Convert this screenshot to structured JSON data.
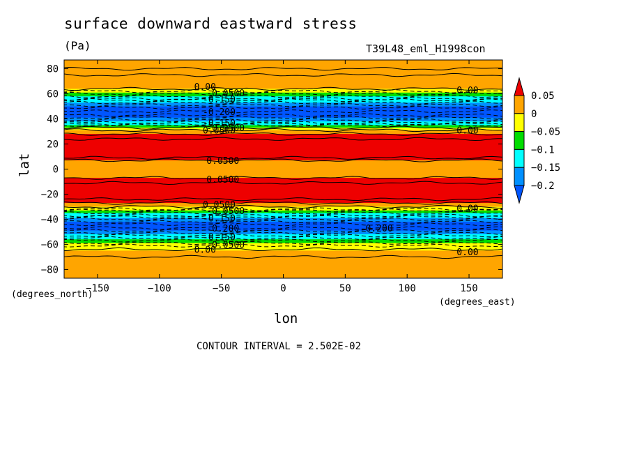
{
  "header": {
    "title": "surface downward eastward stress",
    "units": "(Pa)",
    "run_id": "T39L48_eml_H1998con",
    "x_unit": "(degrees_east)",
    "y_unit": "(degrees_north)",
    "contour_interval": "CONTOUR INTERVAL = 2.502E-02"
  },
  "chart_data": {
    "type": "heatmap",
    "xlabel": "lon",
    "ylabel": "lat",
    "xlim": [
      -177,
      177
    ],
    "ylim": [
      -87,
      87
    ],
    "x_ticks": [
      -150,
      -100,
      -50,
      0,
      50,
      100,
      150
    ],
    "x_tick_labels": [
      "−150",
      "−100",
      "−50",
      "0",
      "50",
      "100",
      "150"
    ],
    "y_ticks": [
      80,
      60,
      40,
      20,
      0,
      -20,
      -40,
      -60,
      -80
    ],
    "y_tick_labels": [
      "80",
      "60",
      "40",
      "20",
      "0",
      "−20",
      "−40",
      "−60",
      "−80"
    ],
    "colorbar": {
      "levels": [
        0.05,
        0,
        -0.05,
        -0.1,
        -0.15,
        -0.2
      ],
      "labels": [
        "0.05",
        "0",
        "−0.05",
        "−0.1",
        "−0.15",
        "−0.2"
      ],
      "colors": [
        "#ee0000",
        "#ffa500",
        "#ffff00",
        "#00dd00",
        "#00ffff",
        "#0090ff",
        "#0055ff"
      ]
    },
    "bands": [
      {
        "lat_top": 87,
        "lat_bottom": 64,
        "color": "#ffa500"
      },
      {
        "lat_top": 64,
        "lat_bottom": 61,
        "color": "#ffff00"
      },
      {
        "lat_top": 61,
        "lat_bottom": 58,
        "color": "#00dd00"
      },
      {
        "lat_top": 58,
        "lat_bottom": 53,
        "color": "#00ffff"
      },
      {
        "lat_top": 53,
        "lat_bottom": 50,
        "color": "#0090ff"
      },
      {
        "lat_top": 50,
        "lat_bottom": 41,
        "color": "#0055ff"
      },
      {
        "lat_top": 41,
        "lat_bottom": 38,
        "color": "#0090ff"
      },
      {
        "lat_top": 38,
        "lat_bottom": 35,
        "color": "#00ffff"
      },
      {
        "lat_top": 35,
        "lat_bottom": 33,
        "color": "#00dd00"
      },
      {
        "lat_top": 33,
        "lat_bottom": 31,
        "color": "#ffff00"
      },
      {
        "lat_top": 31,
        "lat_bottom": 28,
        "color": "#ffa500"
      },
      {
        "lat_top": 28,
        "lat_bottom": 7,
        "color": "#ee0000"
      },
      {
        "lat_top": 7,
        "lat_bottom": -7,
        "color": "#ffa500"
      },
      {
        "lat_top": -7,
        "lat_bottom": -27,
        "color": "#ee0000"
      },
      {
        "lat_top": -27,
        "lat_bottom": -30,
        "color": "#ffa500"
      },
      {
        "lat_top": -30,
        "lat_bottom": -33,
        "color": "#ffff00"
      },
      {
        "lat_top": -33,
        "lat_bottom": -35,
        "color": "#00dd00"
      },
      {
        "lat_top": -35,
        "lat_bottom": -39,
        "color": "#00ffff"
      },
      {
        "lat_top": -39,
        "lat_bottom": -42,
        "color": "#0090ff"
      },
      {
        "lat_top": -42,
        "lat_bottom": -49,
        "color": "#0055ff"
      },
      {
        "lat_top": -49,
        "lat_bottom": -52,
        "color": "#0090ff"
      },
      {
        "lat_top": -52,
        "lat_bottom": -56,
        "color": "#00ffff"
      },
      {
        "lat_top": -56,
        "lat_bottom": -59,
        "color": "#00dd00"
      },
      {
        "lat_top": -59,
        "lat_bottom": -65,
        "color": "#ffff00"
      },
      {
        "lat_top": -65,
        "lat_bottom": -87,
        "color": "#ffa500"
      }
    ],
    "solid_contour_lats": [
      80,
      75,
      64,
      33,
      31,
      28,
      24,
      9,
      7,
      -7,
      -11,
      -24,
      -27,
      -30,
      -64,
      -70
    ],
    "dashed_contour_lats": [
      62,
      60,
      58,
      56,
      55,
      53,
      51,
      49,
      46,
      43,
      41,
      39,
      37,
      36,
      35,
      -32,
      -33,
      -35,
      -37,
      -38,
      -40,
      -42,
      -44,
      -47,
      -49,
      -51,
      -53,
      -55,
      -57,
      -59,
      -61
    ],
    "contour_labels": [
      {
        "text": "0.00",
        "lon": -72,
        "lat": 66
      },
      {
        "text": "-0.0500",
        "lon": -62,
        "lat": 61
      },
      {
        "text": "-0.150",
        "lon": -65,
        "lat": 56
      },
      {
        "text": "-0.200",
        "lon": -65,
        "lat": 46
      },
      {
        "text": "-0.150",
        "lon": -65,
        "lat": 37
      },
      {
        "text": "-0.0500",
        "lon": -62,
        "lat": 33
      },
      {
        "text": "0.0500",
        "lon": -65,
        "lat": 31
      },
      {
        "text": "0.00",
        "lon": 140,
        "lat": 63
      },
      {
        "text": "0.00",
        "lon": 140,
        "lat": 31
      },
      {
        "text": "0.0500",
        "lon": -62,
        "lat": 7
      },
      {
        "text": "0.0500",
        "lon": -62,
        "lat": -8
      },
      {
        "text": "0.0500",
        "lon": -65,
        "lat": -28
      },
      {
        "text": "-0.0500",
        "lon": -62,
        "lat": -33
      },
      {
        "text": "-0.150",
        "lon": -65,
        "lat": -39
      },
      {
        "text": "-0.200",
        "lon": -62,
        "lat": -47
      },
      {
        "text": "-0.150",
        "lon": -65,
        "lat": -54
      },
      {
        "text": "-0.0500",
        "lon": -62,
        "lat": -60
      },
      {
        "text": "0.00",
        "lon": -72,
        "lat": -64
      },
      {
        "text": "0.00",
        "lon": 140,
        "lat": -31
      },
      {
        "text": "0.00",
        "lon": 140,
        "lat": -66
      },
      {
        "text": "-0.200",
        "lon": 62,
        "lat": -47
      }
    ]
  }
}
